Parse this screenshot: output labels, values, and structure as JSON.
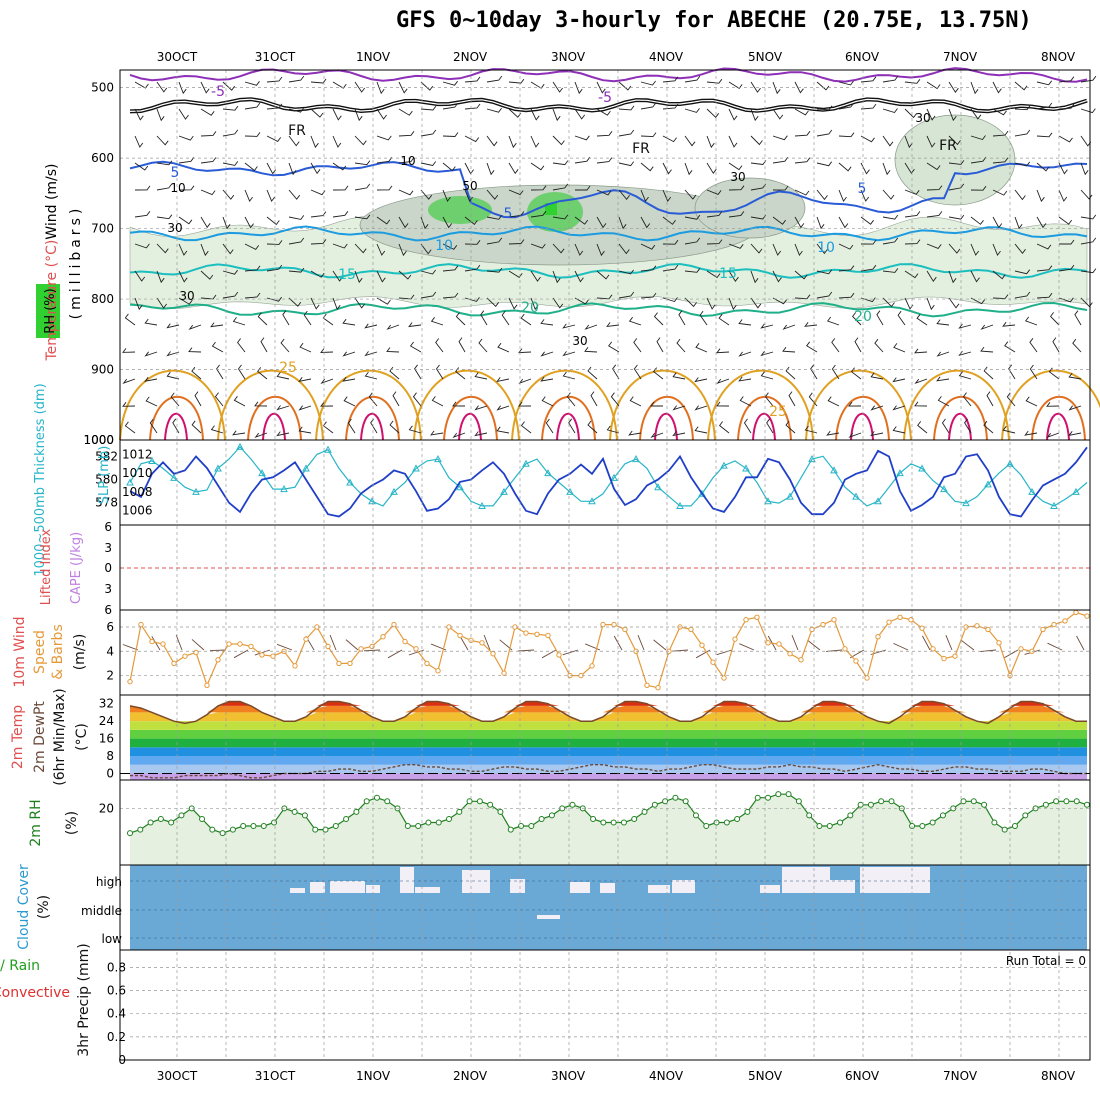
{
  "title": "GFS 0~10day 3-hourly for ABECHE (20.75E, 13.75N)",
  "dates": [
    "30OCT",
    "31OCT",
    "1NOV",
    "2NOV",
    "3NOV",
    "4NOV",
    "5NOV",
    "6NOV",
    "7NOV",
    "8NOV"
  ],
  "run_total": "Run Total = 0",
  "chart_data": [
    {
      "type": "contour",
      "panel": "upper-air",
      "ylabel_parts": [
        "Wind (m/s)",
        "Temperature (°C)",
        "RH (%)",
        "(millibars)"
      ],
      "pressure_ticks": [
        500,
        600,
        700,
        800,
        900,
        1000
      ],
      "temperature_contour_labels": [
        "-5",
        "FR",
        "5",
        "10",
        "15",
        "20",
        "25"
      ],
      "rh_contour_labels": [
        "10",
        "30",
        "50"
      ]
    },
    {
      "type": "line",
      "panel": "thickness-slp",
      "ylabel_left": "1000~500mb Thickness (dm)",
      "ylabel_right": "SLP (mb)",
      "thickness_ticks": [
        578,
        580,
        582
      ],
      "slp_ticks": [
        1006,
        1008,
        1010,
        1012
      ],
      "thickness_range": [
        576.5,
        583
      ],
      "slp_range": [
        1005,
        1013
      ],
      "thickness": [
        579.0,
        578.5,
        580.5,
        581.5,
        580.5,
        580.8,
        582.0,
        581.0,
        579.5,
        578.0,
        577.2,
        578.8,
        580.0,
        580.2,
        580.8,
        581.5,
        580.0,
        578.5,
        577.0,
        576.8,
        577.5,
        578.8,
        579.5,
        580.0,
        580.8,
        580.5,
        579.0,
        577.3,
        577.5,
        578.3,
        579.8,
        580.0,
        580.8,
        581.5,
        580.5,
        578.8,
        577.3,
        577.0,
        578.8,
        580.0,
        580.5,
        581.3,
        580.5,
        581.8,
        579.2,
        577.8,
        578.3,
        579.5,
        580.0,
        580.8,
        582.0,
        580.2,
        578.8,
        577.5,
        577.2,
        578.5,
        580.2,
        580.2,
        581.8,
        581.5,
        580.0,
        578.0,
        577.0,
        577.0,
        578.0,
        580.0,
        580.5,
        580.8,
        582.5,
        582.0,
        579.0,
        577.3,
        577.8,
        578.5,
        580.2,
        580.5,
        582.0,
        582.2,
        580.8,
        578.5,
        577.0,
        576.8,
        578.2,
        579.5,
        580.0,
        580.5,
        581.5,
        582.8
      ],
      "slp": [
        1009.0,
        1011.0,
        1011.3,
        1010.5,
        1009.5,
        1008.5,
        1008.0,
        1008.2,
        1010.5,
        1011.5,
        1012.8,
        1011.5,
        1010.0,
        1008.3,
        1008.3,
        1008.5,
        1010.5,
        1012.0,
        1012.5,
        1010.5,
        1009.0,
        1007.8,
        1007.0,
        1006.5,
        1008.0,
        1009.0,
        1010.5,
        1011.3,
        1011.5,
        1009.5,
        1008.5,
        1007.0,
        1006.5,
        1006.5,
        1008.0,
        1009.5,
        1011.0,
        1011.5,
        1010.0,
        1009.0,
        1008.0,
        1007.0,
        1007.0,
        1007.8,
        1009.5,
        1011.0,
        1011.5,
        1010.5,
        1008.5,
        1007.5,
        1006.5,
        1006.5,
        1007.8,
        1009.5,
        1010.8,
        1011.3,
        1010.5,
        1009.0,
        1007.0,
        1006.8,
        1007.5,
        1009.5,
        1011.5,
        1011.8,
        1010.3,
        1008.5,
        1007.5,
        1006.5,
        1007.0,
        1008.5,
        1010.0,
        1011.0,
        1010.5,
        1009.2,
        1008.3,
        1007.0,
        1006.8,
        1007.5,
        1008.8,
        1010.0,
        1011.0,
        1009.8,
        1008.0,
        1007.0,
        1006.5,
        1007.2,
        1008.0,
        1009.0
      ]
    },
    {
      "type": "line",
      "panel": "stability",
      "ylabel_parts": [
        "Lifted Index",
        "CAPE (J/kg)"
      ],
      "yticks": [
        "6",
        "3",
        "0",
        "3",
        "6"
      ]
    },
    {
      "type": "line",
      "panel": "10m-wind",
      "ylabel_parts": [
        "10m Wind",
        "Speed",
        "& Barbs",
        "(m/s)"
      ],
      "yticks": [
        2,
        4,
        6
      ],
      "yrange": [
        0.4,
        7.4
      ],
      "values": [
        1.5,
        6.2,
        4.8,
        4.6,
        3.0,
        3.6,
        3.9,
        1.2,
        3.3,
        4.6,
        4.6,
        4.4,
        3.7,
        3.6,
        4.0,
        2.8,
        5.0,
        6.0,
        4.4,
        3.0,
        3.0,
        4.2,
        4.4,
        5.2,
        6.2,
        4.8,
        4.2,
        3.0,
        2.4,
        6.0,
        5.3,
        4.9,
        4.7,
        3.8,
        2.2,
        6.0,
        5.5,
        5.4,
        5.3,
        3.7,
        2.0,
        2.0,
        2.8,
        6.2,
        6.2,
        5.8,
        4.0,
        1.2,
        1.0,
        4.0,
        6.0,
        5.8,
        4.5,
        3.1,
        1.8,
        5.0,
        6.6,
        6.8,
        4.7,
        4.6,
        3.8,
        3.3,
        5.8,
        6.2,
        6.6,
        4.2,
        3.2,
        1.8,
        5.2,
        6.4,
        6.8,
        6.6,
        5.9,
        4.2,
        3.4,
        3.6,
        6.0,
        6.1,
        5.8,
        4.7,
        2.0,
        4.2,
        4.0,
        5.8,
        6.2,
        6.5,
        7.2,
        6.9
      ]
    },
    {
      "type": "area",
      "panel": "2m-temp",
      "ylabel_parts": [
        "2m Temp",
        "2m DewPt",
        "(6hr Min/Max)",
        "(°C)"
      ],
      "yticks": [
        0,
        8,
        16,
        24,
        32
      ],
      "yrange": [
        -3,
        36
      ],
      "temperature": [
        31,
        30,
        28,
        26,
        24,
        23,
        24,
        27,
        31,
        33,
        33,
        31,
        28,
        26,
        24,
        24,
        26,
        30,
        33,
        33,
        32,
        29,
        26,
        24,
        24,
        26,
        30,
        33,
        33,
        32,
        29,
        26,
        24,
        24,
        26,
        30,
        33,
        33,
        32,
        29,
        26,
        24,
        24,
        26,
        30,
        33,
        33,
        32,
        29,
        26,
        24,
        24,
        26,
        30,
        33,
        33,
        32,
        29,
        26,
        24,
        24,
        26,
        30,
        33,
        33,
        32,
        29,
        26,
        24,
        23,
        26,
        30,
        33,
        33,
        32,
        29,
        26,
        24,
        23,
        26,
        30,
        33,
        33,
        32,
        29,
        26,
        24,
        24
      ],
      "dewpoint": [
        -1,
        -1,
        -2,
        -2,
        -2,
        -1,
        -1,
        -1,
        -1,
        0,
        -1,
        -2,
        -2,
        -1,
        0,
        0,
        0,
        1,
        1,
        2,
        2,
        1,
        1,
        2,
        3,
        4,
        4,
        3,
        3,
        2,
        2,
        1,
        1,
        2,
        3,
        3,
        2,
        2,
        1,
        1,
        2,
        3,
        4,
        4,
        3,
        3,
        2,
        2,
        1,
        2,
        2,
        3,
        4,
        4,
        3,
        2,
        2,
        2,
        3,
        3,
        4,
        3,
        3,
        2,
        2,
        1,
        2,
        3,
        4,
        3,
        2,
        2,
        1,
        1,
        2,
        3,
        3,
        2,
        2,
        1,
        1,
        1,
        2,
        2,
        1,
        0,
        0,
        0
      ]
    },
    {
      "type": "area",
      "panel": "2m-rh",
      "ylabel_parts": [
        "2m RH",
        "(%)"
      ],
      "yticks": [
        20
      ],
      "yrange": [
        4,
        28
      ],
      "values": [
        13,
        14,
        16,
        17,
        16,
        18,
        20,
        17,
        14,
        13,
        14,
        15,
        15,
        15,
        16,
        20,
        19,
        18,
        14,
        14,
        15,
        17,
        19,
        22,
        23,
        22,
        20,
        15,
        15,
        16,
        16,
        17,
        19,
        22,
        22,
        21,
        19,
        14,
        15,
        15,
        17,
        18,
        20,
        21,
        20,
        17,
        16,
        16,
        16,
        17,
        19,
        21,
        22,
        23,
        22,
        18,
        15,
        16,
        16,
        17,
        19,
        23,
        23,
        24,
        24,
        22,
        18,
        15,
        15,
        16,
        18,
        21,
        21,
        22,
        22,
        20,
        15,
        15,
        16,
        18,
        20,
        22,
        22,
        21,
        16,
        14,
        15,
        18,
        20,
        21,
        22,
        22,
        22,
        21
      ]
    },
    {
      "type": "bar",
      "panel": "cloud-cover",
      "ylabel_parts": [
        "Cloud Cover",
        "(%)"
      ],
      "yticks": [
        "high",
        "middle",
        "low"
      ]
    },
    {
      "type": "bar",
      "panel": "precip",
      "ylabel_parts": [
        "Total / Rain",
        "Convective",
        "3hr Precip (mm)"
      ],
      "yticks": [
        0,
        0.2,
        0.4,
        0.6,
        0.8
      ],
      "yrange": [
        0,
        0.95
      ],
      "values": []
    }
  ]
}
